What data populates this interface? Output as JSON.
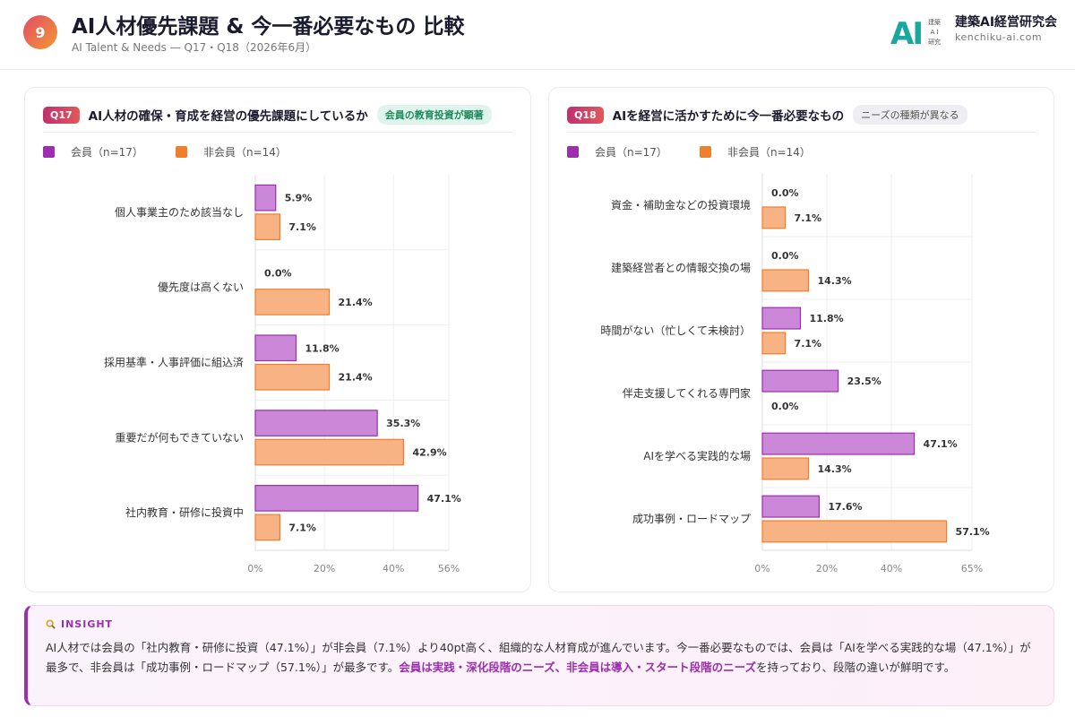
{
  "header": {
    "number": "9",
    "title": "AI人材優先課題 & 今一番必要なもの 比較",
    "subtitle": "AI Talent & Needs — Q17・Q18（2026年6月）",
    "logo_text": "AI",
    "logo_small": "建築 A I 研究",
    "org_name": "建築AI経営研究会",
    "org_url": "kenchiku-ai.com"
  },
  "colors": {
    "member": "#9b2fae",
    "member_fill": "#cc88d8",
    "nonmember": "#ef7f2c",
    "nonmember_fill": "#f8b384",
    "accent": "#9b2fae"
  },
  "legend": {
    "member": "会員（n=17）",
    "nonmember": "非会員（n=14）"
  },
  "q17": {
    "tag": "Q17",
    "title": "AI人材の確保・育成を経営の優先課題にしているか",
    "pill": "会員の教育投資が顕著"
  },
  "q18": {
    "tag": "Q18",
    "title": "AIを経営に活かすために今一番必要なもの",
    "pill": "ニーズの種類が異なる"
  },
  "chart_data": [
    {
      "type": "bar",
      "orientation": "horizontal",
      "categories": [
        "個人事業主のため該当なし",
        "優先度は高くない",
        "採用基準・人事評価に組込済",
        "重要だが何もできていない",
        "社内教育・研修に投資中"
      ],
      "series": [
        {
          "name": "会員（n=17）",
          "values": [
            5.9,
            0.0,
            11.8,
            35.3,
            47.1
          ]
        },
        {
          "name": "非会員（n=14）",
          "values": [
            7.1,
            21.4,
            21.4,
            42.9,
            7.1
          ]
        }
      ],
      "xlim": [
        0,
        56
      ],
      "xticks": [
        "0%",
        "20%",
        "40%",
        "56%"
      ],
      "tick_values": [
        0,
        20,
        40,
        56
      ],
      "legend": "top-left"
    },
    {
      "type": "bar",
      "orientation": "horizontal",
      "categories": [
        "資金・補助金などの投資環境",
        "建築経営者との情報交換の場",
        "時間がない（忙しくて未検討）",
        "伴走支援してくれる専門家",
        "AIを学べる実践的な場",
        "成功事例・ロードマップ"
      ],
      "series": [
        {
          "name": "会員（n=17）",
          "values": [
            0.0,
            0.0,
            11.8,
            23.5,
            47.1,
            17.6
          ]
        },
        {
          "name": "非会員（n=14）",
          "values": [
            7.1,
            14.3,
            7.1,
            0.0,
            14.3,
            57.1
          ]
        }
      ],
      "xlim": [
        0,
        65
      ],
      "xticks": [
        "0%",
        "20%",
        "40%",
        "65%"
      ],
      "tick_values": [
        0,
        20,
        40,
        65
      ],
      "legend": "top-left"
    }
  ],
  "insight": {
    "label": "INSIGHT",
    "text_1": "AI人材では会員の「社内教育・研修に投資（47.1%）」が非会員（7.1%）より40pt高く、組織的な人材育成が進んでいます。今一番必要なものでは、会員は「AIを学べる実践的な場（47.1%）」が最多で、非会員は「成功事例・ロードマップ（57.1%）」が最多です。",
    "highlight": "会員は実践・深化段階のニーズ、非会員は導入・スタート段階のニーズ",
    "text_2": "を持っており、段階の違いが鮮明です。"
  }
}
